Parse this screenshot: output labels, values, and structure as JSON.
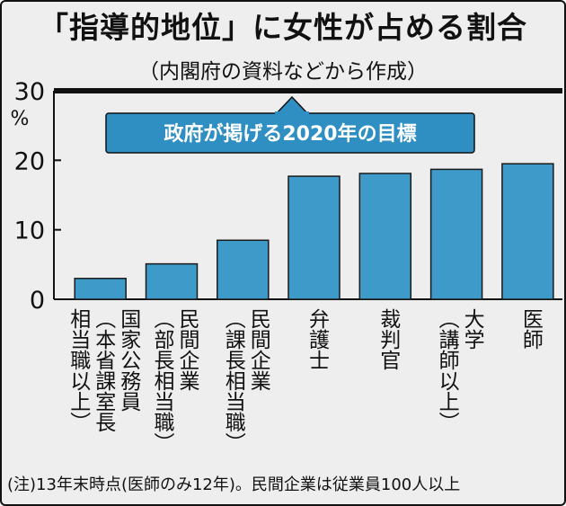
{
  "title": "「指導的地位」に女性が占める割合",
  "subtitle": "（内閣府の資料などから作成）",
  "note": "(注)13年末時点(医師のみ12年)。民間企業は従業員100人以上",
  "colors": {
    "bar": "#3e9ac8",
    "bar_stroke": "#1a1a1a",
    "target_box": "#2f8fc3",
    "target_line": "#111111",
    "background": "#eeeeee"
  },
  "chart_data": {
    "type": "bar",
    "title": "「指導的地位」に女性が占める割合",
    "ylabel": "%",
    "ylim": [
      0,
      30
    ],
    "yticks": [
      "0",
      "10",
      "20",
      "30"
    ],
    "grid": false,
    "categories": [
      "国家公務員（本省課室長相当職以上）",
      "民間企業（部長相当職）",
      "民間企業（課長相当職）",
      "弁護士",
      "裁判官",
      "大学（講師以上）",
      "医師"
    ],
    "category_lines": [
      [
        "国家公務員",
        "（本省課室長",
        "相当職以上）"
      ],
      [
        "民間企業",
        "（部長相当職）"
      ],
      [
        "民間企業",
        "（課長相当職）"
      ],
      [
        "弁護士"
      ],
      [
        "裁判官"
      ],
      [
        "大学",
        "（講師以上）"
      ],
      [
        "医師"
      ]
    ],
    "values": [
      3.0,
      5.1,
      8.5,
      17.7,
      18.1,
      18.7,
      19.5
    ],
    "target": {
      "value": 30,
      "label": "政府が掲げる2020年の目標"
    }
  }
}
